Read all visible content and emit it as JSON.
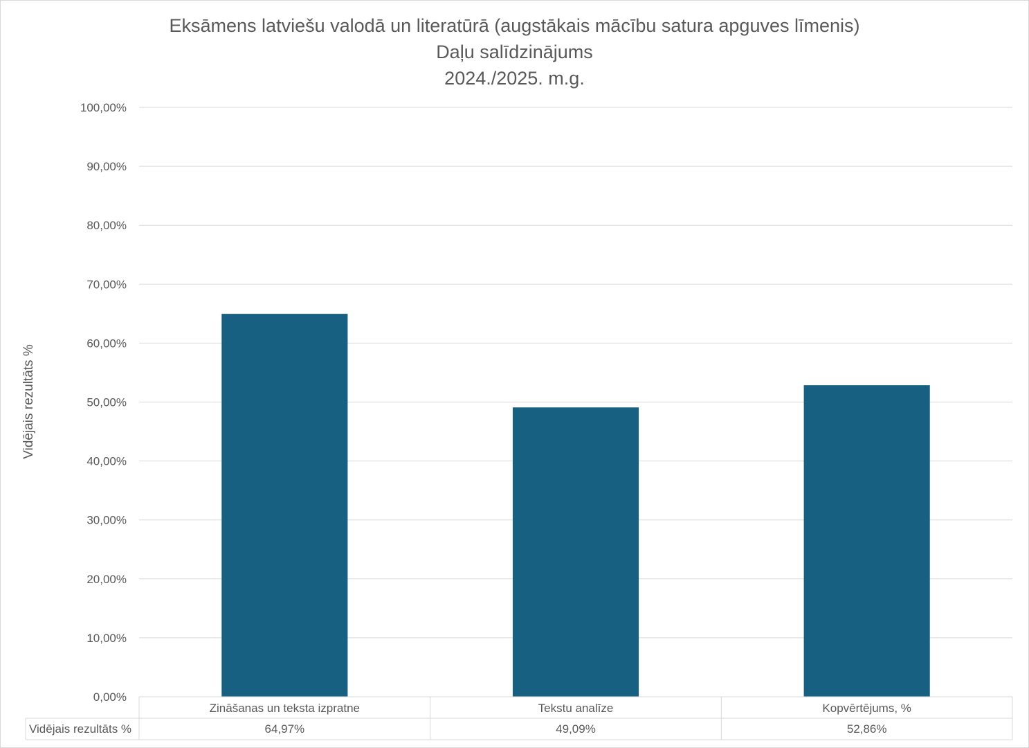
{
  "title": {
    "line1": "Eksāmens latviešu valodā un literatūrā (augstākais mācību satura apguves līmenis)",
    "line2": "Daļu salīdzinājums",
    "line3": "2024./2025. m.g."
  },
  "colors": {
    "bar": "#176082",
    "grid": "#d9d9d9",
    "text": "#595959"
  },
  "chart_data": {
    "type": "bar",
    "title": "Eksāmens latviešu valodā un literatūrā (augstākais mācību satura apguves līmenis) Daļu salīdzinājums 2024./2025. m.g.",
    "xlabel": "",
    "ylabel": "Vidējais rezultāts %",
    "ylim": [
      0,
      100
    ],
    "yticks": [
      0,
      10,
      20,
      30,
      40,
      50,
      60,
      70,
      80,
      90,
      100
    ],
    "ytick_labels": [
      "0,00%",
      "10,00%",
      "20,00%",
      "30,00%",
      "40,00%",
      "50,00%",
      "60,00%",
      "70,00%",
      "80,00%",
      "90,00%",
      "100,00%"
    ],
    "grid": true,
    "categories": [
      "Zināšanas un teksta izpratne",
      "Tekstu analīze",
      "Kopvērtējums, %"
    ],
    "series": [
      {
        "name": "Vidējais rezultāts %",
        "values": [
          64.97,
          49.09,
          52.86
        ],
        "labels": [
          "64,97%",
          "49,09%",
          "52,86%"
        ]
      }
    ],
    "data_table": true
  }
}
